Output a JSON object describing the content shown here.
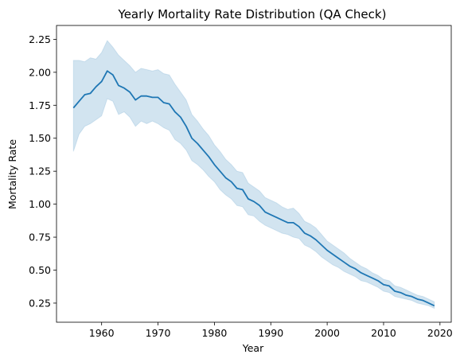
{
  "chart_data": {
    "type": "line",
    "title": "Yearly Mortality Rate Distribution (QA Check)",
    "xlabel": "Year",
    "ylabel": "Mortality Rate",
    "xlim": [
      1952,
      2022
    ],
    "ylim": [
      0.105,
      2.355
    ],
    "x_ticks": [
      1960,
      1970,
      1980,
      1990,
      2000,
      2010,
      2020
    ],
    "y_ticks": [
      0.25,
      0.5,
      0.75,
      1.0,
      1.25,
      1.5,
      1.75,
      2.0,
      2.25
    ],
    "y_tick_labels": [
      "0.25",
      "0.50",
      "0.75",
      "1.00",
      "1.25",
      "1.50",
      "1.75",
      "2.00",
      "2.25"
    ],
    "grid": false,
    "colors": {
      "line": "#1f77b4",
      "band": "#1f77b4"
    },
    "series": [
      {
        "x": [
          1955,
          1956,
          1957,
          1958,
          1959,
          1960,
          1961,
          1962,
          1963,
          1964,
          1965,
          1966,
          1967,
          1968,
          1969,
          1970,
          1971,
          1972,
          1973,
          1974,
          1975,
          1976,
          1977,
          1978,
          1979,
          1980,
          1981,
          1982,
          1983,
          1984,
          1985,
          1986,
          1987,
          1988,
          1989,
          1990,
          1991,
          1992,
          1993,
          1994,
          1995,
          1996,
          1997,
          1998,
          1999,
          2000,
          2001,
          2002,
          2003,
          2004,
          2005,
          2006,
          2007,
          2008,
          2009,
          2010,
          2011,
          2012,
          2013,
          2014,
          2015,
          2016,
          2017,
          2018,
          2019
        ],
        "y": [
          1.73,
          1.78,
          1.83,
          1.84,
          1.89,
          1.93,
          2.01,
          1.98,
          1.9,
          1.88,
          1.85,
          1.79,
          1.82,
          1.82,
          1.81,
          1.81,
          1.77,
          1.76,
          1.7,
          1.66,
          1.59,
          1.5,
          1.46,
          1.41,
          1.36,
          1.3,
          1.25,
          1.2,
          1.17,
          1.12,
          1.11,
          1.04,
          1.02,
          0.99,
          0.94,
          0.92,
          0.9,
          0.88,
          0.86,
          0.86,
          0.83,
          0.78,
          0.76,
          0.73,
          0.69,
          0.65,
          0.62,
          0.59,
          0.56,
          0.53,
          0.51,
          0.48,
          0.46,
          0.44,
          0.42,
          0.39,
          0.38,
          0.34,
          0.33,
          0.31,
          0.3,
          0.28,
          0.27,
          0.25,
          0.23
        ],
        "lower": [
          1.4,
          1.53,
          1.59,
          1.61,
          1.64,
          1.67,
          1.8,
          1.78,
          1.68,
          1.7,
          1.66,
          1.59,
          1.63,
          1.61,
          1.63,
          1.61,
          1.58,
          1.56,
          1.49,
          1.46,
          1.41,
          1.33,
          1.3,
          1.26,
          1.21,
          1.17,
          1.11,
          1.07,
          1.04,
          0.99,
          0.98,
          0.92,
          0.91,
          0.87,
          0.84,
          0.82,
          0.8,
          0.78,
          0.77,
          0.75,
          0.74,
          0.69,
          0.67,
          0.64,
          0.6,
          0.57,
          0.54,
          0.52,
          0.49,
          0.47,
          0.45,
          0.42,
          0.41,
          0.39,
          0.37,
          0.34,
          0.33,
          0.3,
          0.29,
          0.28,
          0.27,
          0.25,
          0.24,
          0.23,
          0.21
        ],
        "upper": [
          2.09,
          2.09,
          2.08,
          2.11,
          2.1,
          2.15,
          2.24,
          2.19,
          2.13,
          2.09,
          2.05,
          2.0,
          2.03,
          2.02,
          2.01,
          2.02,
          1.99,
          1.98,
          1.91,
          1.85,
          1.79,
          1.68,
          1.63,
          1.57,
          1.52,
          1.45,
          1.4,
          1.34,
          1.3,
          1.25,
          1.24,
          1.16,
          1.13,
          1.1,
          1.05,
          1.03,
          1.01,
          0.98,
          0.96,
          0.97,
          0.93,
          0.87,
          0.85,
          0.82,
          0.77,
          0.72,
          0.69,
          0.66,
          0.63,
          0.59,
          0.56,
          0.53,
          0.51,
          0.48,
          0.46,
          0.43,
          0.42,
          0.38,
          0.37,
          0.35,
          0.33,
          0.31,
          0.3,
          0.28,
          0.26
        ]
      }
    ]
  }
}
